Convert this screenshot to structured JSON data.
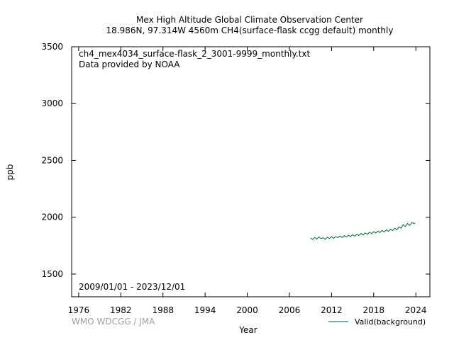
{
  "chart_data": {
    "type": "line",
    "title": "Mex High Altitude Global Climate Observation Center",
    "subtitle": "18.986N, 97.314W 4560m    CH4(surface-flask ccgg default) monthly",
    "xlabel": "Year",
    "ylabel": "ppb",
    "xlim": [
      1975,
      2026
    ],
    "ylim": [
      1300,
      3500
    ],
    "x_ticks": [
      "1976",
      "1982",
      "1988",
      "1994",
      "2000",
      "2006",
      "2012",
      "2018",
      "2024"
    ],
    "y_ticks": [
      "3500",
      "3000",
      "2500",
      "2000",
      "1500"
    ],
    "grid": false,
    "legend_position": "bottom-right",
    "annotations": {
      "filename": "ch4_mex4034_surface-flask_2_3001-9999_monthly.txt",
      "provider": "Data provided by NOAA",
      "date_range": "2009/01/01 - 2023/12/01",
      "credit": "WMO WDCGG / JMA"
    },
    "series": [
      {
        "name": "Valid(background)",
        "color": "#006633",
        "x": [
          2009.0,
          2009.3,
          2009.6,
          2009.9,
          2010.2,
          2010.5,
          2010.8,
          2011.1,
          2011.4,
          2011.7,
          2012.0,
          2012.3,
          2012.6,
          2012.9,
          2013.2,
          2013.5,
          2013.8,
          2014.1,
          2014.4,
          2014.7,
          2015.0,
          2015.3,
          2015.6,
          2015.9,
          2016.2,
          2016.5,
          2016.8,
          2017.1,
          2017.4,
          2017.7,
          2018.0,
          2018.3,
          2018.6,
          2018.9,
          2019.2,
          2019.5,
          2019.8,
          2020.1,
          2020.4,
          2020.7,
          2021.0,
          2021.3,
          2021.6,
          2021.9,
          2022.2,
          2022.5,
          2022.8,
          2023.1,
          2023.4,
          2023.9
        ],
        "values": [
          1818,
          1805,
          1822,
          1808,
          1826,
          1812,
          1820,
          1806,
          1824,
          1813,
          1828,
          1815,
          1830,
          1820,
          1835,
          1822,
          1838,
          1826,
          1842,
          1830,
          1846,
          1833,
          1850,
          1840,
          1858,
          1845,
          1862,
          1850,
          1868,
          1856,
          1873,
          1861,
          1878,
          1865,
          1884,
          1870,
          1889,
          1876,
          1895,
          1883,
          1903,
          1890,
          1915,
          1905,
          1935,
          1918,
          1945,
          1928,
          1950,
          1945
        ]
      }
    ]
  }
}
